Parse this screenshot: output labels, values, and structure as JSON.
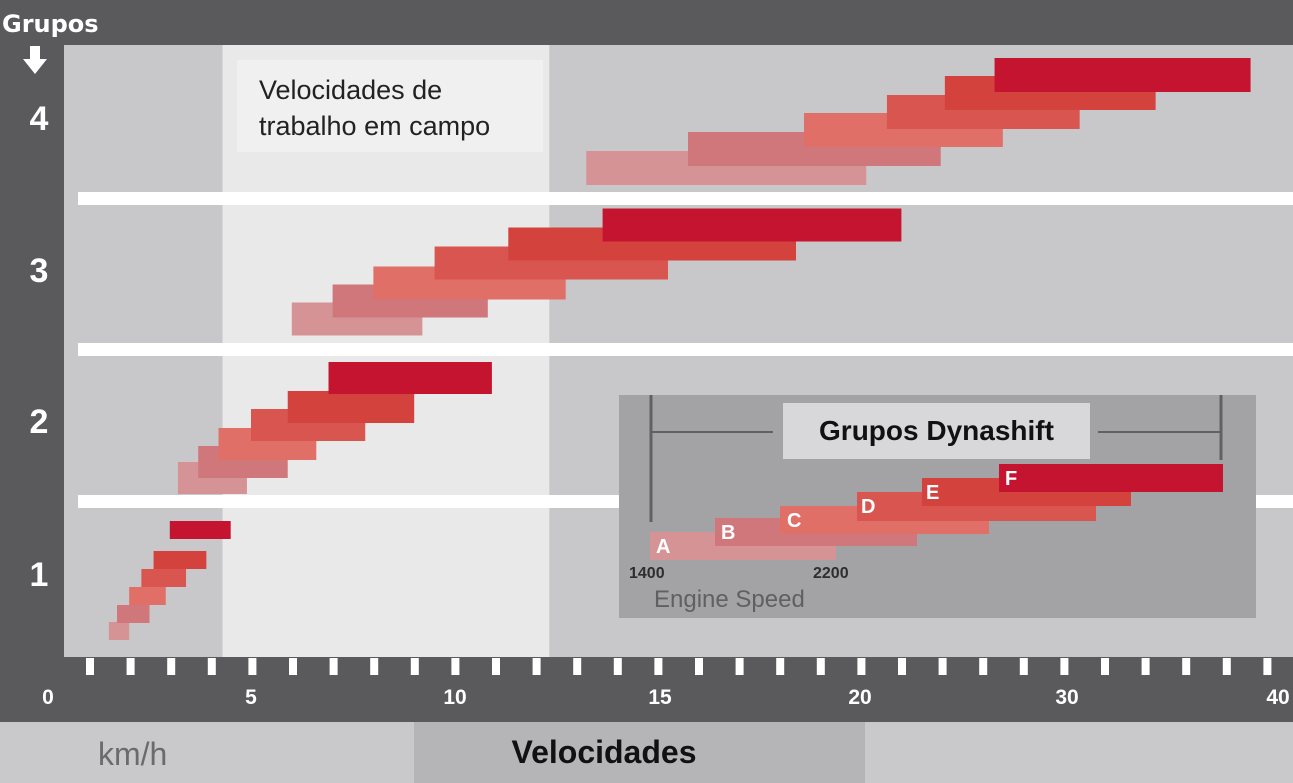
{
  "chart_data": {
    "type": "bar",
    "orientation": "horizontal",
    "title": "Grupos",
    "xlabel": "Velocidades",
    "x_unit": "km/h",
    "xlim": [
      0,
      40
    ],
    "x_ticks": [
      "0",
      "5",
      "10",
      "15",
      "20",
      "30",
      "40"
    ],
    "groups": [
      "1",
      "2",
      "3",
      "4"
    ],
    "highlight_label": "Velocidades de trabalho em campo",
    "highlight_range": [
      4.3,
      12.3
    ],
    "colors": [
      "#d69395",
      "#cf777b",
      "#df6f67",
      "#d8564f",
      "#d4423e",
      "#c41430"
    ],
    "bars": {
      "group_1": [
        [
          1.5,
          2.0
        ],
        [
          1.7,
          2.5
        ],
        [
          2.0,
          2.9
        ],
        [
          2.3,
          3.4
        ],
        [
          2.6,
          3.9
        ],
        [
          3.0,
          4.5
        ]
      ],
      "group_2": [
        [
          3.2,
          4.9
        ],
        [
          3.7,
          5.9
        ],
        [
          4.2,
          6.6
        ],
        [
          5.0,
          7.8
        ],
        [
          5.9,
          9.0
        ],
        [
          6.9,
          10.9
        ]
      ],
      "group_3": [
        [
          6.0,
          9.2
        ],
        [
          7.0,
          10.8
        ],
        [
          8.0,
          12.7
        ],
        [
          9.5,
          15.2
        ],
        [
          11.3,
          18.4
        ],
        [
          13.6,
          22.0
        ]
      ],
      "group_4": [
        [
          13.2,
          20.3
        ],
        [
          15.7,
          23.9
        ],
        [
          18.6,
          26.9
        ],
        [
          21.3,
          30.6
        ],
        [
          24.1,
          34.2
        ],
        [
          26.5,
          38.7
        ]
      ]
    },
    "inset": {
      "title": "Grupos Dynashift",
      "xlabel": "Engine Speed",
      "ticks": [
        "1400",
        "2200"
      ],
      "steps": [
        "A",
        "B",
        "C",
        "D",
        "E",
        "F"
      ]
    }
  }
}
